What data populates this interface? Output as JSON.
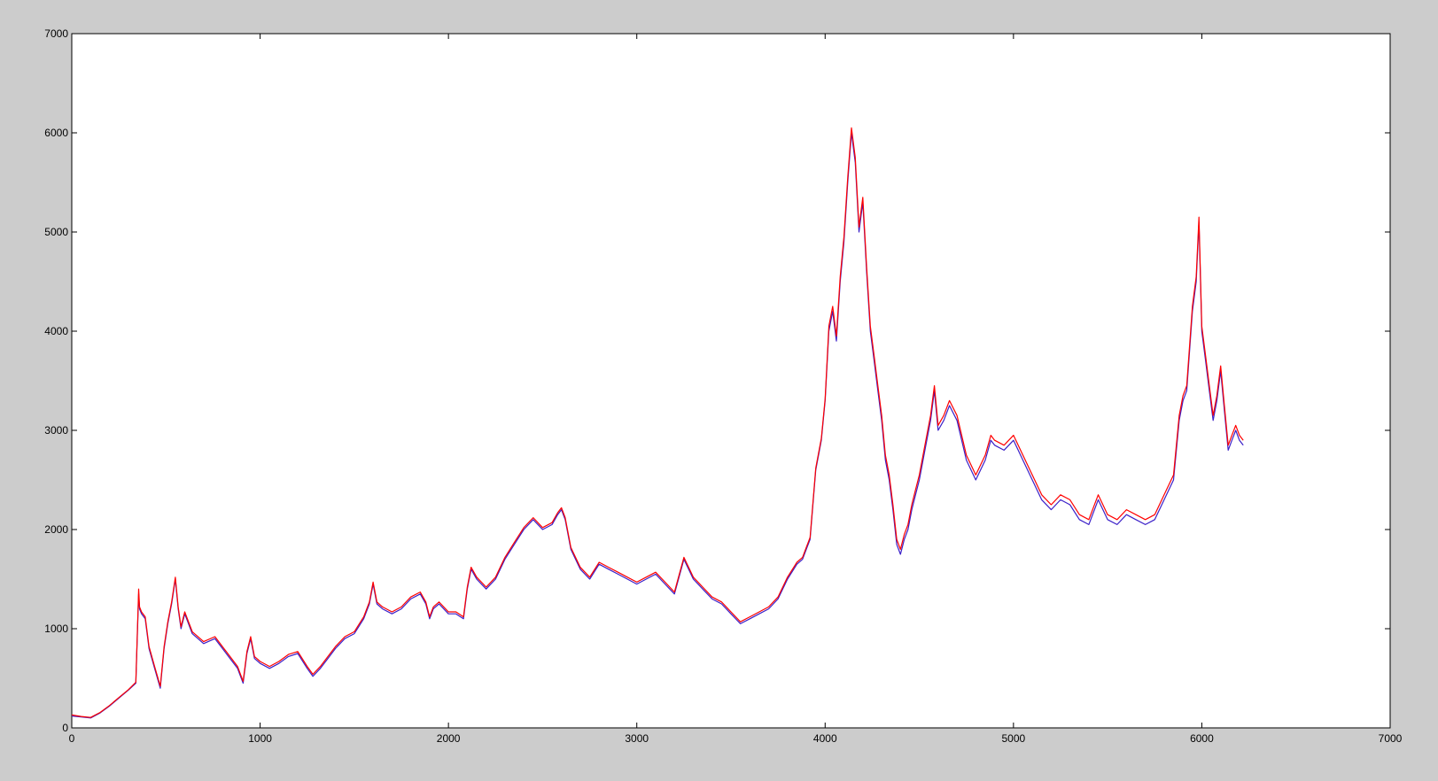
{
  "chart_data": {
    "type": "line",
    "title": "",
    "xlabel": "",
    "ylabel": "",
    "xlim": [
      0,
      7000
    ],
    "ylim": [
      0,
      7000
    ],
    "x_ticks": [
      0,
      1000,
      2000,
      3000,
      4000,
      5000,
      6000,
      7000
    ],
    "y_ticks": [
      0,
      1000,
      2000,
      3000,
      4000,
      5000,
      6000,
      7000
    ],
    "x_tick_labels": [
      "0",
      "1000",
      "2000",
      "3000",
      "4000",
      "5000",
      "6000",
      "7000"
    ],
    "y_tick_labels": [
      "0",
      "1000",
      "2000",
      "3000",
      "4000",
      "5000",
      "6000",
      "7000"
    ],
    "grid": false,
    "legend": "none",
    "colors": {
      "figure_background": "#cccccc",
      "axes_background": "#ffffff",
      "series_1": "#3a1fc8",
      "series_2": "#ff0000"
    },
    "series": [
      {
        "color": "#3a1fc8",
        "x": [
          0,
          50,
          100,
          150,
          200,
          250,
          300,
          340,
          355,
          360,
          370,
          390,
          410,
          440,
          470,
          490,
          510,
          530,
          550,
          565,
          580,
          600,
          640,
          700,
          760,
          800,
          840,
          880,
          910,
          930,
          950,
          970,
          1000,
          1050,
          1100,
          1150,
          1200,
          1250,
          1280,
          1320,
          1360,
          1400,
          1450,
          1500,
          1550,
          1580,
          1600,
          1620,
          1650,
          1700,
          1750,
          1800,
          1850,
          1880,
          1900,
          1920,
          1950,
          2000,
          2040,
          2080,
          2100,
          2120,
          2150,
          2200,
          2250,
          2300,
          2350,
          2400,
          2450,
          2500,
          2550,
          2580,
          2600,
          2620,
          2650,
          2700,
          2750,
          2800,
          2850,
          2900,
          2950,
          3000,
          3050,
          3100,
          3150,
          3200,
          3250,
          3300,
          3350,
          3400,
          3450,
          3500,
          3550,
          3600,
          3650,
          3700,
          3750,
          3800,
          3850,
          3880,
          3900,
          3920,
          3950,
          3980,
          4000,
          4020,
          4040,
          4060,
          4080,
          4100,
          4120,
          4140,
          4160,
          4180,
          4200,
          4220,
          4240,
          4260,
          4280,
          4300,
          4320,
          4340,
          4360,
          4380,
          4400,
          4420,
          4440,
          4460,
          4480,
          4500,
          4530,
          4560,
          4580,
          4600,
          4630,
          4660,
          4700,
          4750,
          4800,
          4850,
          4880,
          4900,
          4950,
          5000,
          5050,
          5100,
          5150,
          5200,
          5250,
          5300,
          5350,
          5400,
          5450,
          5500,
          5550,
          5600,
          5650,
          5700,
          5750,
          5800,
          5850,
          5880,
          5900,
          5920,
          5950,
          5970,
          5985,
          6000,
          6020,
          6040,
          6060,
          6080,
          6100,
          6120,
          6140,
          6160,
          6180,
          6200,
          6220
        ],
        "y": [
          120,
          110,
          100,
          150,
          220,
          300,
          380,
          450,
          1350,
          1200,
          1150,
          1100,
          800,
          600,
          400,
          800,
          1050,
          1250,
          1500,
          1200,
          1000,
          1150,
          950,
          850,
          900,
          800,
          700,
          600,
          450,
          750,
          900,
          700,
          650,
          600,
          650,
          720,
          750,
          600,
          520,
          600,
          700,
          800,
          900,
          950,
          1100,
          1250,
          1450,
          1250,
          1200,
          1150,
          1200,
          1300,
          1350,
          1250,
          1100,
          1200,
          1250,
          1150,
          1150,
          1100,
          1400,
          1600,
          1500,
          1400,
          1500,
          1700,
          1850,
          2000,
          2100,
          2000,
          2050,
          2150,
          2200,
          2100,
          1800,
          1600,
          1500,
          1650,
          1600,
          1550,
          1500,
          1450,
          1500,
          1550,
          1450,
          1350,
          1700,
          1500,
          1400,
          1300,
          1250,
          1150,
          1050,
          1100,
          1150,
          1200,
          1300,
          1500,
          1650,
          1700,
          1800,
          1900,
          2600,
          2900,
          3300,
          4000,
          4200,
          3900,
          4500,
          4900,
          5500,
          6000,
          5700,
          5000,
          5300,
          4600,
          4000,
          3700,
          3400,
          3100,
          2700,
          2500,
          2200,
          1850,
          1750,
          1900,
          2000,
          2200,
          2350,
          2500,
          2800,
          3100,
          3400,
          3000,
          3100,
          3250,
          3100,
          2700,
          2500,
          2700,
          2900,
          2850,
          2800,
          2900,
          2700,
          2500,
          2300,
          2200,
          2300,
          2250,
          2100,
          2050,
          2300,
          2100,
          2050,
          2150,
          2100,
          2050,
          2100,
          2300,
          2500,
          3100,
          3300,
          3400,
          4200,
          4500,
          5100,
          4000,
          3700,
          3400,
          3100,
          3300,
          3600,
          3200,
          2800,
          2900,
          3000,
          2900,
          2850
        ]
      },
      {
        "color": "#ff0000",
        "x": [
          0,
          50,
          100,
          150,
          200,
          250,
          300,
          340,
          355,
          360,
          370,
          390,
          410,
          440,
          470,
          490,
          510,
          530,
          550,
          565,
          580,
          600,
          640,
          700,
          760,
          800,
          840,
          880,
          910,
          930,
          950,
          970,
          1000,
          1050,
          1100,
          1150,
          1200,
          1250,
          1280,
          1320,
          1360,
          1400,
          1450,
          1500,
          1550,
          1580,
          1600,
          1620,
          1650,
          1700,
          1750,
          1800,
          1850,
          1880,
          1900,
          1920,
          1950,
          2000,
          2040,
          2080,
          2100,
          2120,
          2150,
          2200,
          2250,
          2300,
          2350,
          2400,
          2450,
          2500,
          2550,
          2580,
          2600,
          2620,
          2650,
          2700,
          2750,
          2800,
          2850,
          2900,
          2950,
          3000,
          3050,
          3100,
          3150,
          3200,
          3250,
          3300,
          3350,
          3400,
          3450,
          3500,
          3550,
          3600,
          3650,
          3700,
          3750,
          3800,
          3850,
          3880,
          3900,
          3920,
          3950,
          3980,
          4000,
          4020,
          4040,
          4060,
          4080,
          4100,
          4120,
          4140,
          4160,
          4180,
          4200,
          4220,
          4240,
          4260,
          4280,
          4300,
          4320,
          4340,
          4360,
          4380,
          4400,
          4420,
          4440,
          4460,
          4480,
          4500,
          4530,
          4560,
          4580,
          4600,
          4630,
          4660,
          4700,
          4750,
          4800,
          4850,
          4880,
          4900,
          4950,
          5000,
          5050,
          5100,
          5150,
          5200,
          5250,
          5300,
          5350,
          5400,
          5450,
          5500,
          5550,
          5600,
          5650,
          5700,
          5750,
          5800,
          5850,
          5880,
          5900,
          5920,
          5950,
          5970,
          5985,
          6000,
          6020,
          6040,
          6060,
          6080,
          6100,
          6120,
          6140,
          6160,
          6180,
          6200,
          6220
        ],
        "y": [
          130,
          115,
          105,
          155,
          225,
          305,
          385,
          460,
          1400,
          1220,
          1170,
          1120,
          820,
          620,
          420,
          820,
          1070,
          1270,
          1520,
          1220,
          1020,
          1170,
          970,
          870,
          920,
          820,
          720,
          620,
          470,
          770,
          920,
          720,
          670,
          620,
          670,
          740,
          770,
          620,
          540,
          620,
          720,
          820,
          920,
          970,
          1120,
          1270,
          1470,
          1270,
          1220,
          1170,
          1220,
          1320,
          1370,
          1270,
          1120,
          1220,
          1270,
          1170,
          1170,
          1120,
          1420,
          1620,
          1520,
          1420,
          1520,
          1720,
          1870,
          2020,
          2120,
          2020,
          2070,
          2170,
          2220,
          2120,
          1820,
          1620,
          1520,
          1670,
          1620,
          1570,
          1520,
          1470,
          1520,
          1570,
          1470,
          1370,
          1720,
          1520,
          1420,
          1320,
          1270,
          1170,
          1070,
          1120,
          1170,
          1220,
          1320,
          1520,
          1670,
          1720,
          1820,
          1920,
          2620,
          2920,
          3320,
          4050,
          4250,
          3950,
          4550,
          4950,
          5550,
          6050,
          5750,
          5050,
          5350,
          4650,
          4050,
          3750,
          3450,
          3150,
          2750,
          2550,
          2250,
          1900,
          1800,
          1950,
          2050,
          2250,
          2400,
          2550,
          2850,
          3150,
          3450,
          3050,
          3150,
          3300,
          3150,
          2750,
          2550,
          2750,
          2950,
          2900,
          2850,
          2950,
          2750,
          2550,
          2350,
          2250,
          2350,
          2300,
          2150,
          2100,
          2350,
          2150,
          2100,
          2200,
          2150,
          2100,
          2150,
          2350,
          2550,
          3150,
          3350,
          3450,
          4250,
          4550,
          5150,
          4050,
          3750,
          3450,
          3150,
          3350,
          3650,
          3250,
          2850,
          2950,
          3050,
          2950,
          2900
        ]
      }
    ]
  }
}
